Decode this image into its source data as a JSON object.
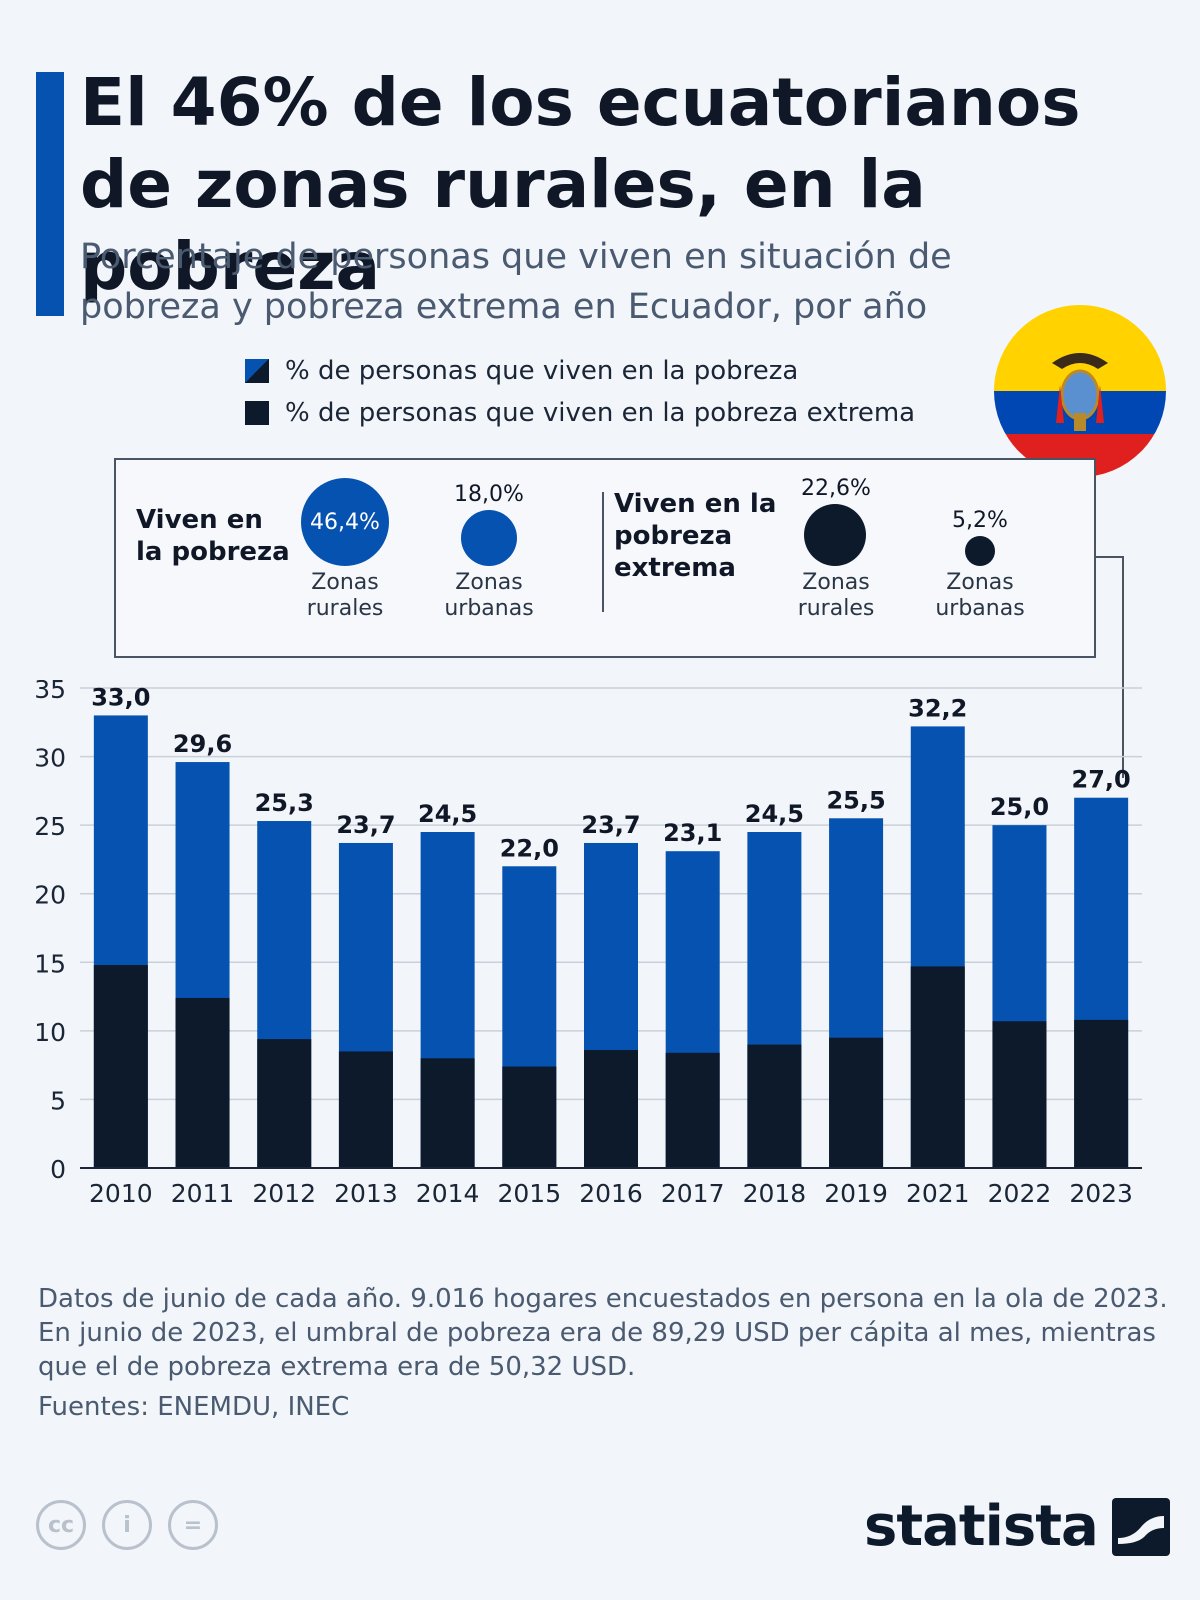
{
  "header": {
    "title": "El 46% de los ecuatorianos de zonas rurales, en la pobreza",
    "subtitle": "Porcentaje de personas que viven en situación de pobreza y pobreza extrema en Ecuador, por año"
  },
  "legend": {
    "poverty": "% de personas que viven en la pobreza",
    "extreme": "% de personas que viven en la pobreza extrema"
  },
  "inset": {
    "poverty_heading": "Viven en la pobreza",
    "extreme_heading": "Viven en la pobreza extrema",
    "poverty_rural_value": "46,4%",
    "poverty_rural_caption": "Zonas rurales",
    "poverty_urban_value": "18,0%",
    "poverty_urban_caption": "Zonas urbanas",
    "extreme_rural_value": "22,6%",
    "extreme_rural_caption": "Zonas rurales",
    "extreme_urban_value": "5,2%",
    "extreme_urban_caption": "Zonas urbanas"
  },
  "chart_data": {
    "type": "bar",
    "stacked": false,
    "overlapping": true,
    "categories": [
      "2010",
      "2011",
      "2012",
      "2013",
      "2014",
      "2015",
      "2016",
      "2017",
      "2018",
      "2019",
      "2021",
      "2022",
      "2023"
    ],
    "series": [
      {
        "name": "% de personas que viven en la pobreza",
        "values": [
          33.0,
          29.6,
          25.3,
          23.7,
          24.5,
          22.0,
          23.7,
          23.1,
          24.5,
          25.5,
          32.2,
          25.0,
          27.0
        ],
        "color": "#0652b0"
      },
      {
        "name": "% de personas que viven en la pobreza extrema",
        "values": [
          14.8,
          12.4,
          9.4,
          8.5,
          8.0,
          7.4,
          8.6,
          8.4,
          9.0,
          9.5,
          14.7,
          10.7,
          10.8
        ],
        "color": "#0d1a2b"
      }
    ],
    "data_labels": [
      "33,0",
      "29,6",
      "25,3",
      "23,7",
      "24,5",
      "22,0",
      "23,7",
      "23,1",
      "24,5",
      "25,5",
      "32,2",
      "25,0",
      "27,0"
    ],
    "yticks": [
      0,
      5,
      10,
      15,
      20,
      25,
      30,
      35
    ],
    "ylim": [
      0,
      35
    ],
    "grid": true
  },
  "footer": {
    "note1": "Datos de junio de cada año. 9.016 hogares encuestados en persona en la ola de 2023.",
    "note2": "En junio de 2023, el umbral de pobreza era de 89,29 USD per cápita al mes, mientras que el de pobreza extrema era de 50,32 USD.",
    "source": "Fuentes: ENEMDU, INEC",
    "brand": "statista",
    "cc_icons": [
      "cc",
      "i",
      "="
    ]
  },
  "colors": {
    "blue": "#0652b0",
    "dark": "#0d1a2b",
    "background": "#f2f5f9"
  }
}
